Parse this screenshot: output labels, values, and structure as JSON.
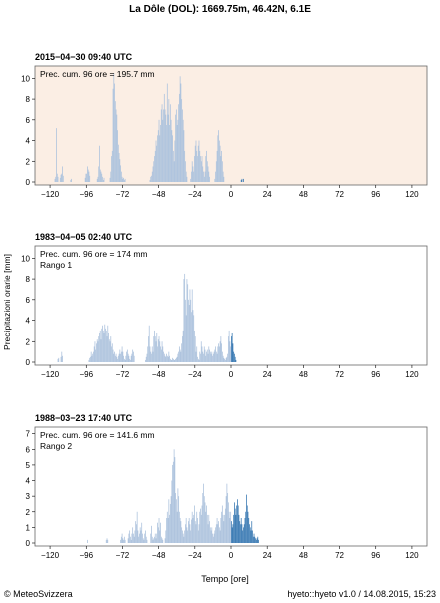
{
  "header": {
    "title": "La Dôle (DOL): 1669.75m, 46.42N, 6.1E"
  },
  "footer": {
    "copyright": "© MeteoSvizzera",
    "version": "hyeto::hyeto v1.0 / 14.08.2015, 15:23"
  },
  "axes": {
    "xlabel": "Tempo [ore]",
    "ylabel": "Precipitazioni orarie [mm]",
    "xticks": [
      -120,
      -96,
      -72,
      -48,
      -24,
      0,
      24,
      48,
      72,
      96,
      120
    ],
    "xlim": [
      -130,
      130
    ]
  },
  "colors": {
    "past": "#afc4de",
    "future": "#3f7db5",
    "current_bg": "#fbeee4",
    "frame": "#666666"
  },
  "chart_data": [
    {
      "type": "bar",
      "title": "2015−04−30 09:40 UTC",
      "annotation": "Prec. cum. 96 ore = 195.7 mm",
      "rank": "",
      "ylim": [
        0,
        11
      ],
      "yticks": [
        0,
        2,
        4,
        6,
        8,
        10
      ],
      "x_start": -120,
      "values": [
        0,
        0,
        0,
        0,
        0,
        0,
        0.3,
        0.5,
        5.2,
        0.8,
        0.5,
        0,
        0,
        0.4,
        0.7,
        0.8,
        1.5,
        0.6,
        0,
        0,
        0,
        0,
        0,
        0,
        0,
        0,
        0,
        0.2,
        0.3,
        0,
        0,
        0,
        0,
        0,
        0,
        0,
        0,
        0,
        0,
        0,
        0,
        0,
        0,
        0,
        0,
        0,
        0.4,
        0.8,
        0.8,
        1.5,
        1.2,
        1.0,
        0.6,
        0,
        0,
        0,
        0,
        0,
        0,
        0,
        0,
        0,
        0.3,
        0.5,
        1.5,
        3.5,
        1.2,
        1.0,
        0.8,
        0.5,
        0.2,
        0.4,
        0,
        0,
        0,
        0,
        0,
        0,
        0,
        0.4,
        1.0,
        2.5,
        3.0,
        9.0,
        10.5,
        9.5,
        7.8,
        7.0,
        6.5,
        5.0,
        3.6,
        2.8,
        2.2,
        1.6,
        1.0,
        0.5,
        0.3,
        0.4,
        0.2,
        0.3,
        0,
        0,
        0,
        0,
        0,
        0,
        0,
        0,
        0,
        0,
        0,
        0,
        0,
        0,
        0,
        0,
        0,
        0,
        0,
        0,
        0,
        0,
        0,
        0,
        0,
        0,
        0,
        0,
        0,
        0,
        0,
        0,
        0.2,
        0.5,
        0.6,
        1.0,
        1.5,
        2.0,
        2.5,
        3.0,
        4.0,
        3.5,
        4.5,
        5.0,
        6.0,
        4.5,
        5.5,
        7.0,
        7.5,
        6.0,
        7.0,
        8.5,
        7.0,
        6.5,
        5.5,
        9.5,
        6.5,
        8.0,
        5.5,
        7.5,
        6.0,
        5.0,
        4.5,
        3.0,
        2.0,
        4.0,
        6.5,
        7.0,
        5.5,
        6.0,
        7.5,
        8.5,
        10.2,
        9.5,
        8.0,
        7.0,
        6.0,
        5.0,
        3.0,
        2.0,
        1.0,
        0.5,
        0,
        0,
        0,
        0,
        0.3,
        1.0,
        2.0,
        1.5,
        1.0,
        2.5,
        3.5,
        4.0,
        3.0,
        2.5,
        3.5,
        4.0,
        3.0,
        2.5,
        2.0,
        2.5,
        1.5,
        1.0,
        0.5,
        1.0,
        2.5,
        3.0,
        2.0,
        1.5,
        1.0,
        0.5,
        0,
        0,
        0,
        0,
        0,
        0,
        0.3,
        1.0,
        2.0,
        3.0,
        4.5,
        5.0,
        4.0,
        3.5,
        2.5,
        3.0,
        2.0,
        1.0,
        0.5,
        0,
        0,
        0,
        0,
        0,
        0,
        0,
        0,
        0,
        0,
        0,
        0,
        0,
        0,
        0,
        0,
        0,
        0,
        0,
        0,
        0,
        0,
        0.2,
        0.3,
        0,
        0.3,
        0,
        0,
        0,
        0,
        0
      ]
    },
    {
      "type": "bar",
      "title": "1983−04−05 02:40 UTC",
      "annotation": "Prec. cum. 96 ore = 174 mm",
      "rank": "Rango 1",
      "ylim": [
        0,
        11
      ],
      "yticks": [
        0,
        2,
        4,
        6,
        8,
        10
      ],
      "x_start": -120,
      "values": [
        0,
        0,
        0,
        0,
        0,
        0,
        0,
        0,
        0,
        0,
        0.3,
        0.4,
        0,
        0,
        0.5,
        1.0,
        0.6,
        0,
        0,
        0,
        0,
        0,
        0,
        0,
        0,
        0,
        0,
        0,
        0,
        0,
        0,
        0,
        0,
        0,
        0,
        0,
        0,
        0,
        0,
        0,
        0,
        0,
        0,
        0,
        0,
        0,
        0,
        0,
        0,
        0,
        0,
        0.2,
        0.4,
        0.5,
        1.0,
        0.6,
        0.8,
        1.0,
        1.5,
        2.0,
        1.2,
        1.8,
        2.2,
        2.0,
        2.5,
        2.8,
        3.0,
        2.2,
        3.2,
        3.5,
        3.0,
        2.8,
        3.6,
        3.2,
        3.0,
        2.5,
        3.5,
        2.8,
        2.2,
        2.0,
        2.5,
        1.5,
        1.8,
        1.2,
        0.8,
        1.0,
        0.6,
        0.8,
        0.5,
        0.3,
        0.6,
        0.8,
        1.2,
        0.8,
        1.0,
        1.5,
        1.0,
        0.6,
        0.3,
        0.2,
        0.6,
        1.0,
        1.2,
        0.8,
        0.6,
        0.3,
        0.2,
        0.6,
        0.8,
        1.2,
        1.0,
        0.6,
        0,
        0,
        0,
        0,
        0,
        0,
        0,
        0,
        0,
        0,
        0,
        0,
        0,
        0,
        0.2,
        0.5,
        0.8,
        1.5,
        2.5,
        3.5,
        1.5,
        1.0,
        0.8,
        1.5,
        1.0,
        2.5,
        3.0,
        2.5,
        2.0,
        2.8,
        1.5,
        2.2,
        2.5,
        2.0,
        1.5,
        1.2,
        2.0,
        1.5,
        1.0,
        0.8,
        0.6,
        0.5,
        0.8,
        0.6,
        0.5,
        1.0,
        0.6,
        0.3,
        0.2,
        0.2,
        0.4,
        0.3,
        0.2,
        0.2,
        0.3,
        0.4,
        0.5,
        0.8,
        1.0,
        1.5,
        1.2,
        1.0,
        1.8,
        2.5,
        3.0,
        8.0,
        8.5,
        6.0,
        4.5,
        8.0,
        7.5,
        6.0,
        5.5,
        7.0,
        6.0,
        4.8,
        7.0,
        5.0,
        4.5,
        3.0,
        2.5,
        1.0,
        1.5,
        0.5,
        0.3,
        0.2,
        1.0,
        0.8,
        2.0,
        1.5,
        1.0,
        0.8,
        1.5,
        1.2,
        0.6,
        1.0,
        1.2,
        0.8,
        1.5,
        1.2,
        1.0,
        0.8,
        1.0,
        0.6,
        0.8,
        1.0,
        1.2,
        1.5,
        1.0,
        0.8,
        1.5,
        1.8,
        1.5,
        2.0,
        2.5,
        1.8,
        1.0,
        0.6,
        0.4,
        0.3,
        0.2,
        0.4,
        0.5,
        0.8,
        2.5,
        3.0,
        2.0,
        1.5,
        2.5,
        2.8,
        1.8,
        1.0,
        0.8,
        0.5,
        0.2,
        0,
        0,
        0,
        0,
        0,
        0,
        0,
        0,
        0,
        0,
        0,
        0,
        0,
        0,
        0,
        0,
        0,
        0,
        0,
        0,
        0,
        0,
        0,
        0,
        0,
        0,
        0,
        0,
        0
      ]
    },
    {
      "type": "bar",
      "title": "1988−03−23 17:40 UTC",
      "annotation": "Prec. cum. 96 ore = 141.6 mm",
      "rank": "Rango 2",
      "ylim": [
        0,
        7.3
      ],
      "yticks": [
        0,
        1,
        2,
        3,
        4,
        5,
        6,
        7
      ],
      "x_start": -120,
      "values": [
        0,
        0,
        0,
        0,
        0,
        0,
        0,
        0,
        0,
        0,
        0,
        0,
        0,
        0,
        0,
        0,
        0,
        0,
        0,
        0,
        0,
        0,
        0,
        0,
        0,
        0,
        0,
        0,
        0,
        0,
        0,
        0,
        0,
        0,
        0,
        0,
        0,
        0,
        0,
        0,
        0,
        0,
        0,
        0,
        0,
        0,
        0,
        0,
        0,
        0.2,
        0,
        0,
        0,
        0,
        0,
        0,
        0,
        0,
        0,
        0,
        0,
        0,
        0,
        0,
        0,
        0,
        0,
        0,
        0,
        0,
        0,
        0,
        0,
        0,
        0.2,
        0.3,
        0.2,
        0,
        0,
        0,
        0,
        0,
        0,
        0,
        0,
        0,
        0,
        0,
        0,
        0,
        0,
        0,
        0,
        0.2,
        0.4,
        0.6,
        0.3,
        0.2,
        0.4,
        0.2,
        0,
        0,
        0,
        0.3,
        0.6,
        0.8,
        0.4,
        0.2,
        0.6,
        1.0,
        0.6,
        0.4,
        0.8,
        1.4,
        1.2,
        2.0,
        0.8,
        0.4,
        0.6,
        1.0,
        0.8,
        1.3,
        0.6,
        0.3,
        0.2,
        0.6,
        0.8,
        0.4,
        0.2,
        0,
        0,
        0,
        0,
        0.6,
        1.1,
        0.4,
        0.2,
        0.3,
        0.4,
        0.6,
        0.3,
        0.6,
        1.3,
        1.0,
        1.6,
        0.8,
        1.3,
        0.4,
        0.3,
        0.2,
        0,
        0,
        0.3,
        0.8,
        1.6,
        2.0,
        1.6,
        2.8,
        1.8,
        2.5,
        3.0,
        4.0,
        5.0,
        5.2,
        6.0,
        5.5,
        3.2,
        2.8,
        2.0,
        3.5,
        3.0,
        2.0,
        1.6,
        1.4,
        1.0,
        0.8,
        0.6,
        0.4,
        0.8,
        1.2,
        1.6,
        1.0,
        0.8,
        1.4,
        1.6,
        1.2,
        0.8,
        1.5,
        2.0,
        1.6,
        1.8,
        2.4,
        1.4,
        1.2,
        2.0,
        1.6,
        0.8,
        1.2,
        2.0,
        2.2,
        1.8,
        2.4,
        3.2,
        3.8,
        3.0,
        2.6,
        2.0,
        2.4,
        1.8,
        1.2,
        1.8,
        1.4,
        1.0,
        0.8,
        1.0,
        0.6,
        0.4,
        0.6,
        0.8,
        1.0,
        1.2,
        1.6,
        1.2,
        1.4,
        1.0,
        0.8,
        1.6,
        2.0,
        2.4,
        1.8,
        1.4,
        1.8,
        2.2,
        3.0,
        3.8,
        3.2,
        2.6,
        2.0,
        1.6,
        2.0,
        1.4,
        1.0,
        1.2,
        1.8,
        2.6,
        2.2,
        1.8,
        2.4,
        2.8,
        2.4,
        1.8,
        1.4,
        1.2,
        1.6,
        1.2,
        0.8,
        1.0,
        1.2,
        1.6,
        2.0,
        3.1,
        2.4,
        2.0,
        1.6,
        1.2,
        1.0,
        0.8,
        1.4,
        0.8,
        0.4,
        0.6,
        0.4,
        0.3,
        0.2,
        0.3,
        0.4,
        0.2,
        0,
        0,
        0,
        0,
        0,
        0,
        0,
        0,
        0,
        0
      ]
    }
  ]
}
